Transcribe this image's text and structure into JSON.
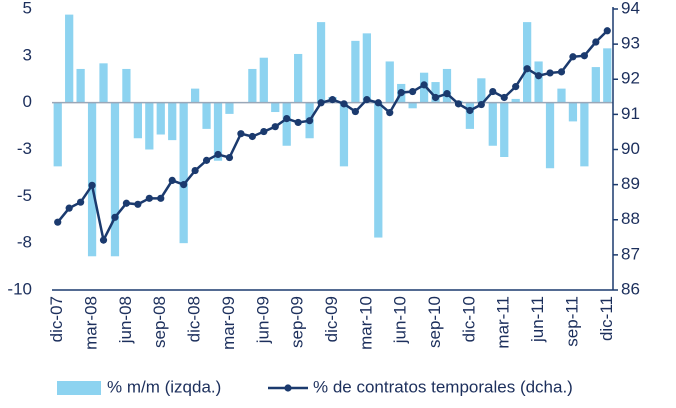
{
  "chart_data": {
    "type": "bar-line",
    "categories": [
      "dic-07",
      null,
      null,
      "mar-08",
      null,
      null,
      "jun-08",
      null,
      null,
      "sep-08",
      null,
      null,
      "dic-08",
      null,
      null,
      "mar-09",
      null,
      null,
      "jun-09",
      null,
      null,
      "sep-09",
      null,
      null,
      "dic-09",
      null,
      null,
      "mar-10",
      null,
      null,
      "jun-10",
      null,
      null,
      "sep-10",
      null,
      null,
      "dic-10",
      null,
      null,
      "mar-11",
      null,
      null,
      "jun-11",
      null,
      null,
      "sep-11",
      null,
      null,
      "dic-11"
    ],
    "series": [
      {
        "name": "% m/m (izqda.)",
        "type": "bar",
        "color": "#8dd3f0",
        "values": [
          -3.4,
          4.7,
          1.8,
          -8.2,
          2.1,
          -8.2,
          1.8,
          -1.9,
          -2.5,
          -1.7,
          -2.0,
          -7.5,
          0.75,
          -1.4,
          -3.1,
          -0.6,
          0,
          1.8,
          2.4,
          -0.5,
          -2.3,
          2.6,
          -1.9,
          4.3,
          0.3,
          -3.4,
          3.3,
          3.7,
          -7.2,
          2.2,
          1.0,
          -0.3,
          1.6,
          1.1,
          1.8,
          0.1,
          -1.4,
          1.3,
          -2.3,
          -2.9,
          0.2,
          4.3,
          2.2,
          -3.5,
          0.75,
          -1.0,
          -3.4,
          1.9,
          2.9
        ]
      },
      {
        "name": "% de contratos temporales (dcha.)",
        "type": "line",
        "axis": "y2",
        "color": "#1b3a6e",
        "values": [
          87.93,
          88.33,
          88.5,
          88.98,
          87.42,
          88.07,
          88.47,
          88.44,
          88.61,
          88.61,
          89.12,
          89.0,
          89.4,
          89.69,
          89.86,
          89.77,
          90.45,
          90.37,
          90.51,
          90.65,
          90.88,
          90.77,
          90.82,
          91.33,
          91.42,
          91.3,
          91.08,
          91.42,
          91.33,
          91.05,
          91.62,
          91.65,
          91.84,
          91.48,
          91.59,
          91.3,
          91.11,
          91.28,
          91.65,
          91.48,
          91.79,
          92.3,
          92.1,
          92.18,
          92.21,
          92.64,
          92.67,
          93.06,
          93.38
        ]
      }
    ],
    "ylim": [
      -10,
      5
    ],
    "yticks": [
      5,
      {
        "value": 2.5,
        "label": "3"
      },
      0,
      {
        "value": -2.5,
        "label": "-3"
      },
      -5,
      {
        "value": -7.5,
        "label": "-8"
      },
      -10
    ],
    "y2lim": [
      86,
      94
    ],
    "y2ticks": [
      94,
      93,
      92,
      91,
      90,
      89,
      88,
      87,
      86
    ],
    "legend": "bottom"
  }
}
